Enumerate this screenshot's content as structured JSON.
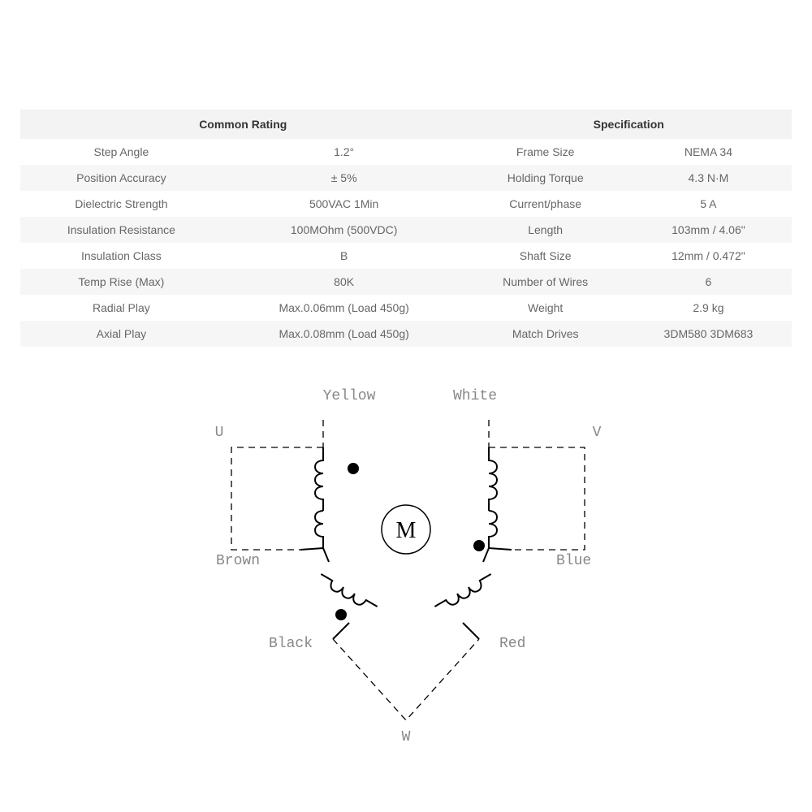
{
  "table": {
    "header_left": "Common Rating",
    "header_right": "Specification",
    "rows": [
      {
        "l_label": "Step Angle",
        "l_value": "1.2°",
        "r_label": "Frame Size",
        "r_value": "NEMA 34"
      },
      {
        "l_label": "Position Accuracy",
        "l_value": "± 5%",
        "r_label": "Holding Torque",
        "r_value": "4.3 N·M"
      },
      {
        "l_label": "Dielectric Strength",
        "l_value": "500VAC 1Min",
        "r_label": "Current/phase",
        "r_value": "5 A"
      },
      {
        "l_label": "Insulation Resistance",
        "l_value": "100MOhm (500VDC)",
        "r_label": "Length",
        "r_value": "103mm / 4.06\""
      },
      {
        "l_label": "Insulation Class",
        "l_value": "B",
        "r_label": "Shaft Size",
        "r_value": "12mm / 0.472\""
      },
      {
        "l_label": "Temp Rise (Max)",
        "l_value": "80K",
        "r_label": "Number of Wires",
        "r_value": "6"
      },
      {
        "l_label": "Radial Play",
        "l_value": "Max.0.06mm (Load 450g)",
        "r_label": "Weight",
        "r_value": "2.9 kg"
      },
      {
        "l_label": "Axial Play",
        "l_value": "Max.0.08mm (Load 450g)",
        "r_label": "Match Drives",
        "r_value": "3DM580 3DM683"
      }
    ],
    "alt_row_bg": "#f6f6f6",
    "header_bg": "#f3f3f3",
    "font_size": 14
  },
  "diagram": {
    "type": "schematic",
    "motor_label": "M",
    "wire_labels": {
      "yellow": "Yellow",
      "white": "White",
      "u": "U",
      "v": "V",
      "brown": "Brown",
      "blue": "Blue",
      "black": "Black",
      "red": "Red",
      "w": "W"
    },
    "stroke_color": "#000000",
    "label_color": "#888888",
    "label_font": "Courier New",
    "label_fontsize": 18,
    "dot_radius": 7,
    "motor_circle_r": 30
  }
}
